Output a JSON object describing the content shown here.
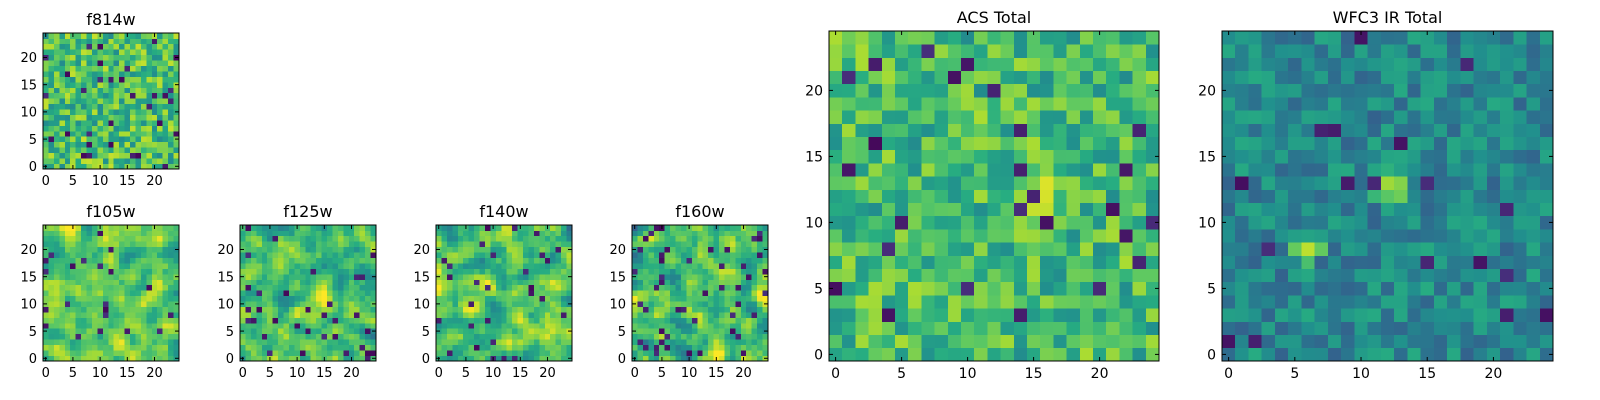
{
  "chart_data": [
    {
      "type": "heatmap",
      "id": "f814w",
      "title": "f814w",
      "grid_size": 25,
      "xticks": [
        "0",
        "5",
        "10",
        "15",
        "20"
      ],
      "yticks": [
        "0",
        "5",
        "10",
        "15",
        "20"
      ],
      "xlim": [
        -0.5,
        24.5
      ],
      "ylim": [
        -0.5,
        24.5
      ],
      "colormap": "viridis",
      "texture": "fine noise, mostly green-yellow with scattered dark blue pixels",
      "values_note": "pixel values approximate, normalized 0-1",
      "seed": 11,
      "mean": 0.7,
      "spread": 0.22,
      "smooth": 0,
      "dark_fraction": 0.06,
      "blob": null
    },
    {
      "type": "heatmap",
      "id": "f105w",
      "title": "f105w",
      "grid_size": 25,
      "xticks": [
        "0",
        "5",
        "10",
        "15",
        "20"
      ],
      "yticks": [
        "0",
        "5",
        "10",
        "15",
        "20"
      ],
      "xlim": [
        -0.5,
        24.5
      ],
      "ylim": [
        -0.5,
        24.5
      ],
      "colormap": "viridis",
      "values_note": "pixel values approximate, normalized 0-1",
      "seed": 23,
      "mean": 0.74,
      "spread": 0.26,
      "smooth": 1,
      "dark_fraction": 0.04,
      "blob": null
    },
    {
      "type": "heatmap",
      "id": "f125w",
      "title": "f125w",
      "grid_size": 25,
      "xticks": [
        "0",
        "5",
        "10",
        "15",
        "20"
      ],
      "yticks": [
        "0",
        "5",
        "10",
        "15",
        "20"
      ],
      "xlim": [
        -0.5,
        24.5
      ],
      "ylim": [
        -0.5,
        24.5
      ],
      "colormap": "viridis",
      "values_note": "pixel values approximate, normalized 0-1",
      "seed": 37,
      "mean": 0.7,
      "spread": 0.28,
      "smooth": 1,
      "dark_fraction": 0.05,
      "blob": null
    },
    {
      "type": "heatmap",
      "id": "f140w",
      "title": "f140w",
      "grid_size": 25,
      "xticks": [
        "0",
        "5",
        "10",
        "15",
        "20"
      ],
      "yticks": [
        "0",
        "5",
        "10",
        "15",
        "20"
      ],
      "xlim": [
        -0.5,
        24.5
      ],
      "ylim": [
        -0.5,
        24.5
      ],
      "colormap": "viridis",
      "values_note": "pixel values approximate, normalized 0-1",
      "seed": 41,
      "mean": 0.72,
      "spread": 0.28,
      "smooth": 1,
      "dark_fraction": 0.05,
      "blob": null
    },
    {
      "type": "heatmap",
      "id": "f160w",
      "title": "f160w",
      "grid_size": 25,
      "xticks": [
        "0",
        "5",
        "10",
        "15",
        "20"
      ],
      "yticks": [
        "0",
        "5",
        "10",
        "15",
        "20"
      ],
      "xlim": [
        -0.5,
        24.5
      ],
      "ylim": [
        -0.5,
        24.5
      ],
      "colormap": "viridis",
      "values_note": "pixel values approximate, normalized 0-1",
      "seed": 53,
      "mean": 0.7,
      "spread": 0.3,
      "smooth": 1,
      "dark_fraction": 0.06,
      "blob": null
    },
    {
      "type": "heatmap",
      "id": "acs_total",
      "title": "ACS Total",
      "grid_size": 25,
      "xticks": [
        "0",
        "5",
        "10",
        "15",
        "20"
      ],
      "yticks": [
        "0",
        "5",
        "10",
        "15",
        "20"
      ],
      "xlim": [
        -0.5,
        24.5
      ],
      "ylim": [
        -0.5,
        24.5
      ],
      "colormap": "viridis",
      "values_note": "pixel values approximate, normalized 0-1",
      "seed": 67,
      "mean": 0.68,
      "spread": 0.2,
      "smooth": 0,
      "dark_fraction": 0.05,
      "blob": {
        "col": 16,
        "row": 11,
        "radius": 2.5,
        "boost": 0.22
      }
    },
    {
      "type": "heatmap",
      "id": "wfc3_ir_total",
      "title": "WFC3 IR Total",
      "grid_size": 25,
      "xticks": [
        "0",
        "5",
        "10",
        "15",
        "20"
      ],
      "yticks": [
        "0",
        "5",
        "10",
        "15",
        "20"
      ],
      "xlim": [
        -0.5,
        24.5
      ],
      "ylim": [
        -0.5,
        24.5
      ],
      "colormap": "viridis",
      "values_note": "pixel values approximate, normalized 0-1",
      "seed": 79,
      "mean": 0.47,
      "spread": 0.15,
      "smooth": 0,
      "dark_fraction": 0.04,
      "blob": {
        "col": 12,
        "row": 13,
        "radius": 1.6,
        "boost": 0.45
      },
      "blob2": {
        "col": 6,
        "row": 8,
        "radius": 1.2,
        "boost": 0.4
      }
    }
  ]
}
